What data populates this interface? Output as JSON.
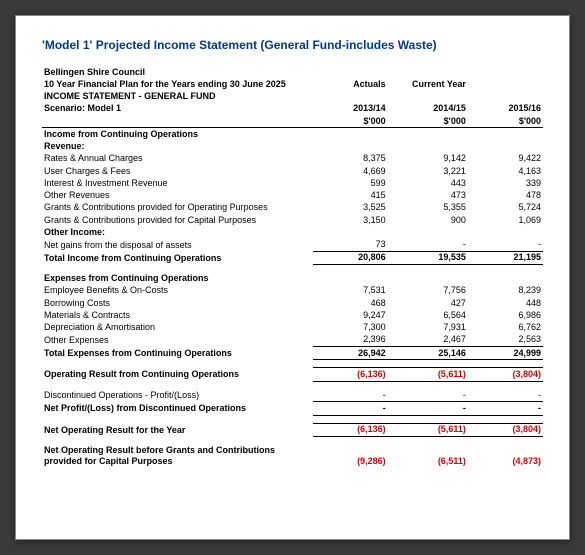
{
  "title_prefix": "'Model 1' Projected Income Statement (General Fund-",
  "title_suffix": "includes Waste)",
  "org": "Bellingen Shire Council",
  "plan_line": "10 Year Financial Plan for the Years ending 30 June 2025",
  "statement_line": "INCOME STATEMENT - GENERAL FUND",
  "scenario_line": "Scenario: Model 1",
  "col_headers": {
    "c1a": "Actuals",
    "c1b": "2013/14",
    "c2a": "Current Year",
    "c2b": "2014/15",
    "c3a": "",
    "c3b": "2015/16",
    "unit": "$'000"
  },
  "sections": {
    "income_title": "Income from Continuing Operations",
    "revenue_label": "Revenue:",
    "rows_income": [
      {
        "label": "Rates & Annual Charges",
        "v": [
          "8,375",
          "9,142",
          "9,422"
        ]
      },
      {
        "label": "User Charges & Fees",
        "v": [
          "4,669",
          "3,221",
          "4,163"
        ]
      },
      {
        "label": "Interest & Investment Revenue",
        "v": [
          "599",
          "443",
          "339"
        ]
      },
      {
        "label": "Other Revenues",
        "v": [
          "415",
          "473",
          "478"
        ]
      },
      {
        "label": "Grants & Contributions provided for Operating Purposes",
        "v": [
          "3,525",
          "5,355",
          "5,724"
        ]
      },
      {
        "label": "Grants & Contributions provided for Capital Purposes",
        "v": [
          "3,150",
          "900",
          "1,069"
        ]
      }
    ],
    "other_income_label": "Other Income:",
    "net_gains": {
      "label": "Net gains from the disposal of assets",
      "v": [
        "73",
        "-",
        "-"
      ]
    },
    "total_income": {
      "label": "Total Income from Continuing Operations",
      "v": [
        "20,806",
        "19,535",
        "21,195"
      ]
    },
    "expenses_title": "Expenses from Continuing Operations",
    "rows_expenses": [
      {
        "label": "Employee Benefits & On-Costs",
        "v": [
          "7,531",
          "7,756",
          "8,239"
        ]
      },
      {
        "label": "Borrowing Costs",
        "v": [
          "468",
          "427",
          "448"
        ]
      },
      {
        "label": "Materials & Contracts",
        "v": [
          "9,247",
          "6,564",
          "6,986"
        ]
      },
      {
        "label": "Depreciation & Amortisation",
        "v": [
          "7,300",
          "7,931",
          "6,762"
        ]
      },
      {
        "label": "Other Expenses",
        "v": [
          "2,396",
          "2,467",
          "2,563"
        ]
      }
    ],
    "total_expenses": {
      "label": "Total Expenses from Continuing Operations",
      "v": [
        "26,942",
        "25,146",
        "24,999"
      ]
    },
    "op_result": {
      "label": "Operating Result from Continuing Operations",
      "v": [
        "(6,136)",
        "(5,611)",
        "(3,804)"
      ]
    },
    "disc_ops": {
      "label": "Discontinued Operations - Profit/(Loss)",
      "v": [
        "-",
        "-",
        "-"
      ]
    },
    "net_disc": {
      "label": "Net Profit/(Loss) from Discontinued Operations",
      "v": [
        "-",
        "-",
        "-"
      ]
    },
    "net_op": {
      "label": "Net Operating Result for the Year",
      "v": [
        "(6,136)",
        "(5,611)",
        "(3,804)"
      ]
    },
    "net_before_grants": {
      "label": "Net Operating Result before Grants and Contributions provided for Capital Purposes",
      "v": [
        "(9,286)",
        "(6,511)",
        "(4,873)"
      ]
    }
  }
}
